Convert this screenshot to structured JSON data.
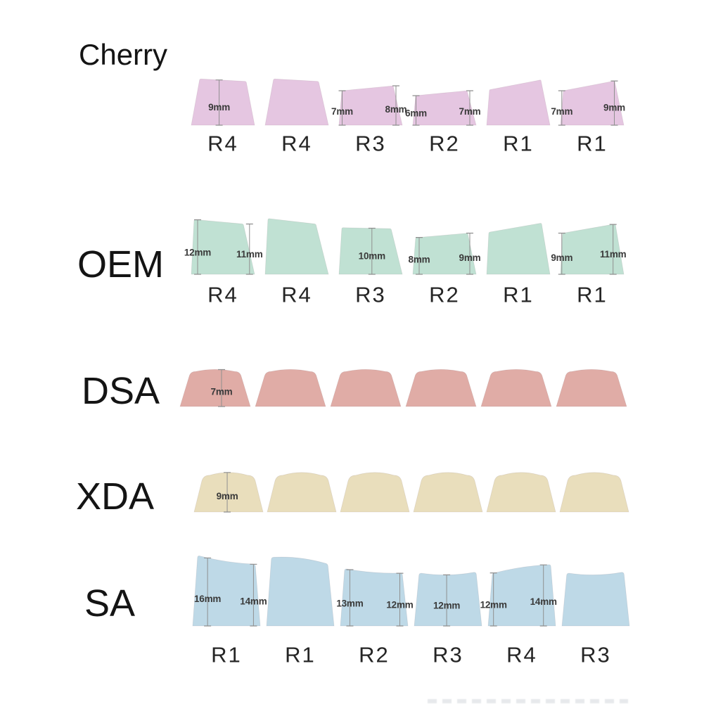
{
  "page": {
    "background": "#ffffff"
  },
  "measure_style": {
    "line_color": "#8f8f8f",
    "text_color": "#3a3a3a"
  },
  "profiles": [
    {
      "name": "Cherry",
      "color": "#e5c6e1",
      "caps": [
        {
          "row": "R4",
          "hL": 9.4,
          "hR": 8.9,
          "iL": 12,
          "iR": 12,
          "c": 0,
          "r": 2,
          "measures": [
            {
              "label": "9mm",
              "f": 0.44
            }
          ]
        },
        {
          "row": "R4",
          "hL": 9.4,
          "hR": 8.9,
          "iL": 12,
          "iR": 14,
          "c": 0,
          "r": 2,
          "measures": []
        },
        {
          "row": "R3",
          "hL": 7,
          "hR": 8,
          "iL": 4,
          "iR": 13,
          "c": 0,
          "r": 1,
          "measures": [
            {
              "label": "7mm",
              "f": 0.05
            },
            {
              "label": "8mm",
              "f": 0.9
            }
          ]
        },
        {
          "row": "R2",
          "hL": 6,
          "hR": 7,
          "iL": 4,
          "iR": 13,
          "c": 0,
          "r": 1,
          "measures": [
            {
              "label": "6mm",
              "f": 0.05
            },
            {
              "label": "7mm",
              "f": 0.9
            }
          ]
        },
        {
          "row": "R1",
          "hL": 7.2,
          "hR": 9.2,
          "iL": 4,
          "iR": 13,
          "c": 0,
          "r": 1,
          "measures": []
        },
        {
          "row": "R1",
          "hL": 7,
          "hR": 9,
          "iL": 4,
          "iR": 13,
          "c": 0,
          "r": 1,
          "measures": [
            {
              "label": "7mm",
              "f": 0.02
            },
            {
              "label": "9mm",
              "f": 0.85
            }
          ]
        }
      ]
    },
    {
      "name": "OEM",
      "color": "#c0e1d3",
      "caps": [
        {
          "row": "R4",
          "hL": 12,
          "hR": 11,
          "iL": 4,
          "iR": 16,
          "c": 0,
          "r": 2,
          "measures": [
            {
              "label": "12mm",
              "f": 0.1
            },
            {
              "label": "11mm",
              "f": 0.92
            }
          ]
        },
        {
          "row": "R4",
          "hL": 12.2,
          "hR": 11,
          "iL": 4,
          "iR": 18,
          "c": 0,
          "r": 2,
          "measures": []
        },
        {
          "row": "R3",
          "hL": 10.2,
          "hR": 10,
          "iL": 4,
          "iR": 16,
          "c": 0,
          "r": 2,
          "measures": [
            {
              "label": "10mm",
              "f": 0.52
            }
          ]
        },
        {
          "row": "R2",
          "hL": 8,
          "hR": 9,
          "iL": 4,
          "iR": 12,
          "c": 0,
          "r": 2,
          "measures": [
            {
              "label": "8mm",
              "f": 0.1
            },
            {
              "label": "9mm",
              "f": 0.9
            }
          ]
        },
        {
          "row": "R1",
          "hL": 9.2,
          "hR": 11.2,
          "iL": 3,
          "iR": 12,
          "c": 0,
          "r": 2,
          "measures": []
        },
        {
          "row": "R1",
          "hL": 9,
          "hR": 11,
          "iL": 3,
          "iR": 12,
          "c": 0,
          "r": 2,
          "measures": [
            {
              "label": "9mm",
              "f": 0.02
            },
            {
              "label": "11mm",
              "f": 0.83
            }
          ]
        }
      ]
    },
    {
      "name": "DSA",
      "color": "#e0aca6",
      "caps": [
        {
          "hL": 7,
          "hR": 7,
          "iL": 15,
          "iR": 15,
          "c": 3,
          "r": 7,
          "measures": [
            {
              "label": "7mm",
              "f": 0.59
            }
          ]
        },
        {
          "hL": 7,
          "hR": 7,
          "iL": 15,
          "iR": 15,
          "c": 3,
          "r": 7,
          "measures": []
        },
        {
          "hL": 7,
          "hR": 7,
          "iL": 15,
          "iR": 15,
          "c": 3,
          "r": 7,
          "measures": []
        },
        {
          "hL": 7,
          "hR": 7,
          "iL": 15,
          "iR": 15,
          "c": 3,
          "r": 7,
          "measures": []
        },
        {
          "hL": 7,
          "hR": 7,
          "iL": 15,
          "iR": 15,
          "c": 3,
          "r": 7,
          "measures": []
        },
        {
          "hL": 7,
          "hR": 7,
          "iL": 15,
          "iR": 15,
          "c": 3,
          "r": 7,
          "measures": []
        }
      ]
    },
    {
      "name": "XDA",
      "color": "#e9debc",
      "caps": [
        {
          "hL": 9,
          "hR": 9,
          "iL": 13,
          "iR": 13,
          "c": 4,
          "r": 9,
          "measures": [
            {
              "label": "9mm",
              "f": 0.48
            }
          ]
        },
        {
          "hL": 9,
          "hR": 9,
          "iL": 13,
          "iR": 13,
          "c": 4,
          "r": 9,
          "measures": []
        },
        {
          "hL": 9,
          "hR": 9,
          "iL": 13,
          "iR": 13,
          "c": 4,
          "r": 9,
          "measures": []
        },
        {
          "hL": 9,
          "hR": 9,
          "iL": 13,
          "iR": 13,
          "c": 4,
          "r": 9,
          "measures": []
        },
        {
          "hL": 9,
          "hR": 9,
          "iL": 13,
          "iR": 13,
          "c": 4,
          "r": 9,
          "measures": []
        },
        {
          "hL": 9,
          "hR": 9,
          "iL": 13,
          "iR": 13,
          "c": 4,
          "r": 9,
          "measures": []
        }
      ]
    },
    {
      "name": "SA",
      "color": "#bed9e7",
      "caps": [
        {
          "row": "R1",
          "hL": 16,
          "hR": 14,
          "iL": 7,
          "iR": 7,
          "c": -2,
          "r": 3,
          "measures": [
            {
              "label": "16mm",
              "f": 0.22
            },
            {
              "label": "14mm",
              "f": 0.9
            }
          ]
        },
        {
          "row": "R1",
          "hL": 15.7,
          "hR": 14.2,
          "iL": 7,
          "iR": 9,
          "c": 3,
          "r": 4,
          "measures": []
        },
        {
          "row": "R2",
          "hL": 13,
          "hR": 12,
          "iL": 6,
          "iR": 8,
          "c": -2,
          "r": 3,
          "measures": [
            {
              "label": "13mm",
              "f": 0.14
            },
            {
              "label": "12mm",
              "f": 0.88
            }
          ]
        },
        {
          "row": "R3",
          "hL": 12,
          "hR": 12.2,
          "iL": 7,
          "iR": 8,
          "c": -3,
          "r": 3,
          "measures": [
            {
              "label": "12mm",
              "f": 0.48
            }
          ]
        },
        {
          "row": "R4",
          "hL": 12,
          "hR": 14,
          "iL": 6,
          "iR": 7,
          "c": 2,
          "r": 3,
          "measures": [
            {
              "label": "12mm",
              "f": 0.08
            },
            {
              "label": "14mm",
              "f": 0.82
            }
          ]
        },
        {
          "row": "R3",
          "hL": 12,
          "hR": 12.2,
          "iL": 7,
          "iR": 8,
          "c": -3,
          "r": 3,
          "measures": []
        }
      ]
    }
  ]
}
